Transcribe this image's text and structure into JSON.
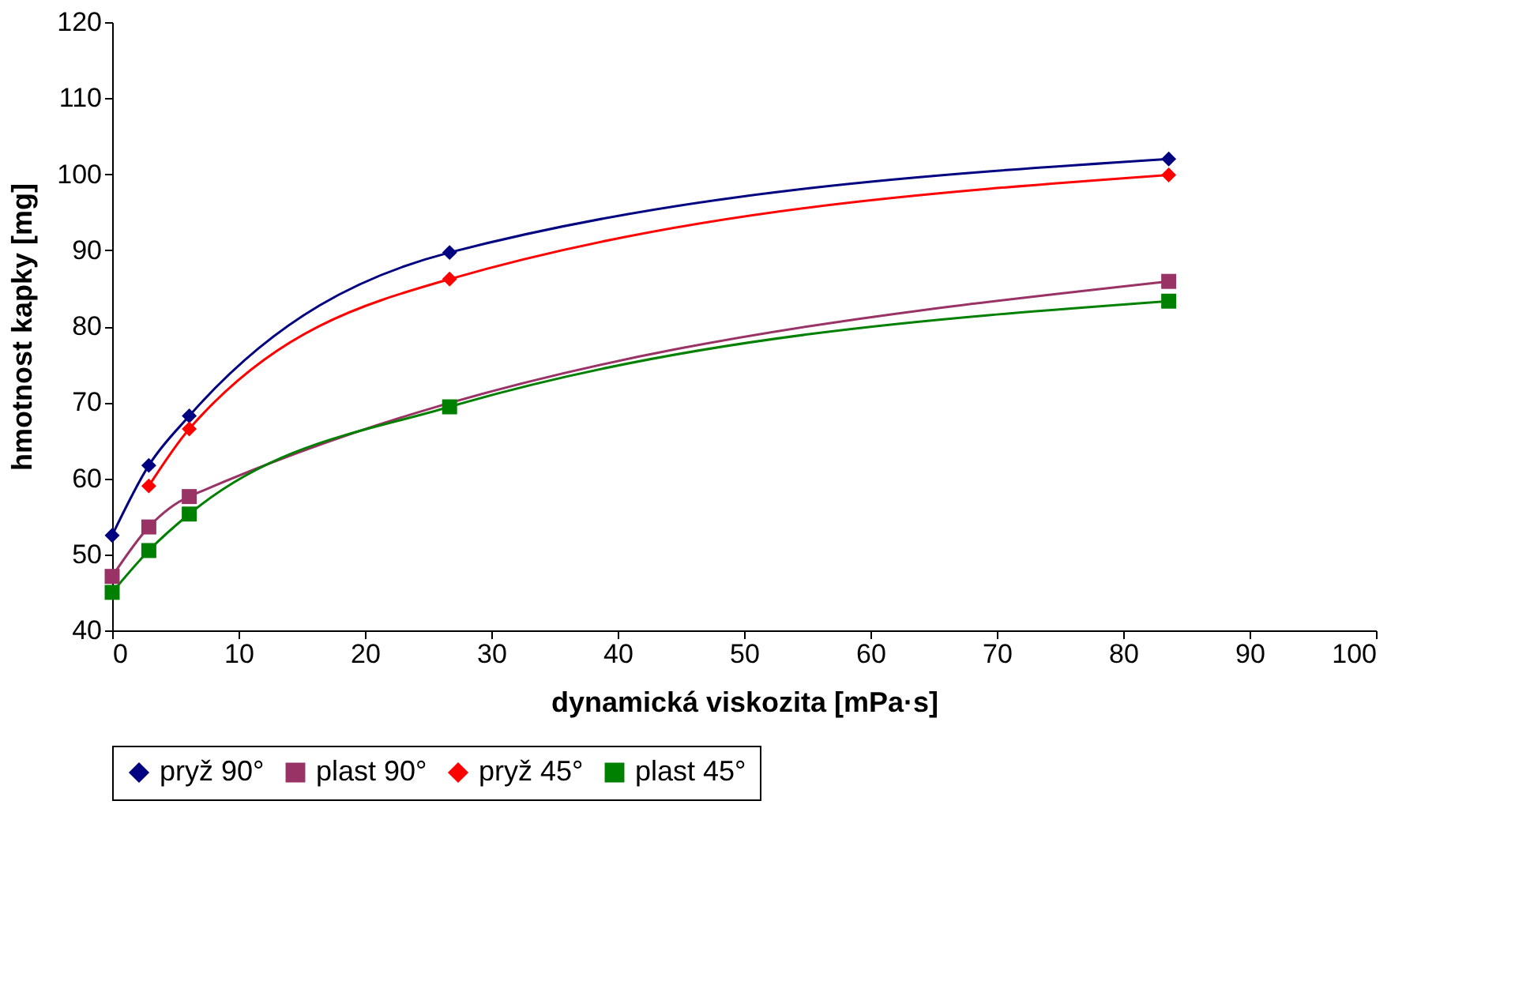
{
  "chart_data": {
    "type": "line",
    "xlabel": "dynamická viskozita [mPa·s]",
    "ylabel": "hmotnost kapky [mg]",
    "x": [
      0,
      2.9,
      6.1,
      26.7,
      83.6
    ],
    "series": [
      {
        "name": "pryž 90°",
        "color": "#000080",
        "marker": "diamond",
        "values": [
          52.5,
          61.7,
          68.2,
          89.7,
          102.0
        ]
      },
      {
        "name": "plast 90°",
        "color": "#993366",
        "marker": "square",
        "values": [
          47.1,
          53.6,
          57.6,
          null,
          85.9
        ]
      },
      {
        "name": "pryž 45°",
        "color": "#ff0000",
        "marker": "diamond",
        "values": [
          null,
          59.0,
          66.5,
          86.2,
          99.9
        ]
      },
      {
        "name": "plast 45°",
        "color": "#008000",
        "marker": "square",
        "values": [
          45.0,
          50.5,
          55.3,
          69.4,
          83.3
        ]
      }
    ],
    "xlim": [
      0,
      100
    ],
    "xticks": [
      0,
      10,
      20,
      30,
      40,
      50,
      60,
      70,
      80,
      90,
      100
    ],
    "ylim": [
      40,
      120
    ],
    "yticks": [
      40,
      50,
      60,
      70,
      80,
      90,
      100,
      110,
      120
    ],
    "grid": false,
    "legend": "bottom"
  }
}
